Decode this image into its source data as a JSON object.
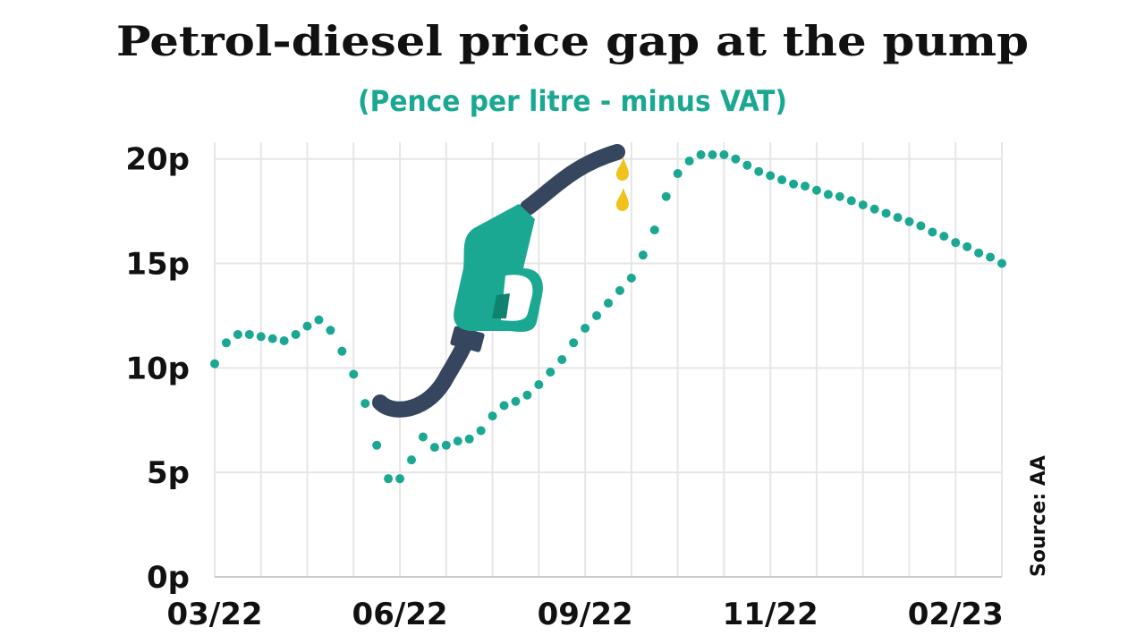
{
  "chart_data": {
    "type": "line",
    "title": "Petrol-diesel price gap at the pump",
    "subtitle": "(Pence per litre - minus VAT)",
    "source": "Source: AA",
    "categories": [
      "03/22",
      null,
      null,
      null,
      null,
      null,
      null,
      null,
      null,
      null,
      null,
      null,
      null,
      null,
      null,
      null,
      "06/22",
      null,
      null,
      null,
      null,
      null,
      null,
      null,
      null,
      null,
      null,
      null,
      null,
      null,
      null,
      null,
      "09/22",
      null,
      null,
      null,
      null,
      null,
      null,
      null,
      null,
      null,
      null,
      null,
      null,
      null,
      null,
      null,
      "11/22",
      null,
      null,
      null,
      null,
      null,
      null,
      null,
      null,
      null,
      null,
      null,
      null,
      null,
      null,
      null,
      "02/23",
      null,
      null,
      null,
      null
    ],
    "series": [
      {
        "color": "#1aa892",
        "values": [
          10.2,
          11.2,
          11.6,
          11.6,
          11.5,
          11.4,
          11.3,
          11.6,
          12.0,
          12.3,
          11.8,
          10.8,
          9.7,
          8.3,
          6.3,
          4.7,
          4.7,
          5.6,
          6.7,
          6.2,
          6.3,
          6.5,
          6.6,
          7.0,
          7.7,
          8.2,
          8.4,
          8.7,
          9.2,
          9.8,
          10.4,
          11.2,
          11.9,
          12.5,
          13.1,
          13.7,
          14.3,
          15.4,
          16.6,
          18.2,
          19.3,
          19.9,
          20.2,
          20.2,
          20.2,
          20.0,
          19.7,
          19.4,
          19.2,
          19.0,
          18.8,
          18.7,
          18.5,
          18.3,
          18.2,
          18.0,
          17.8,
          17.6,
          17.4,
          17.2,
          17.0,
          16.8,
          16.5,
          16.3,
          16.0,
          15.8,
          15.5,
          15.3,
          15.0
        ]
      }
    ],
    "ylim": [
      0,
      20.8
    ],
    "yticks": [
      {
        "value": 0,
        "label": "0p"
      },
      {
        "value": 5,
        "label": "5p"
      },
      {
        "value": 10,
        "label": "10p"
      },
      {
        "value": 15,
        "label": "15p"
      },
      {
        "value": 20,
        "label": "20p"
      }
    ],
    "grid": true
  }
}
